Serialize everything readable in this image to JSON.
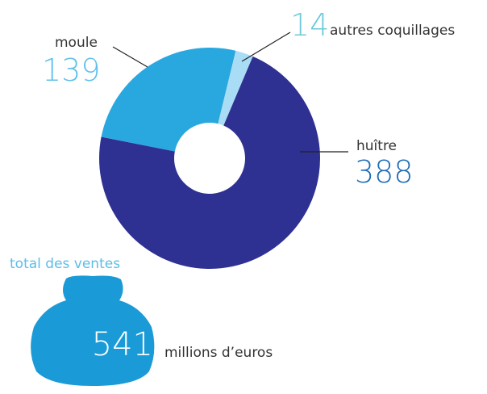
{
  "chart_data": {
    "type": "donut",
    "categories": [
      "huître",
      "moule",
      "autres coquillages"
    ],
    "values": [
      388,
      139,
      14
    ],
    "colors": [
      "#2e3192",
      "#29a8e0",
      "#a9ddf5"
    ],
    "total": {
      "label": "total des ventes",
      "value": 541,
      "unit": "millions d’euros"
    }
  }
}
